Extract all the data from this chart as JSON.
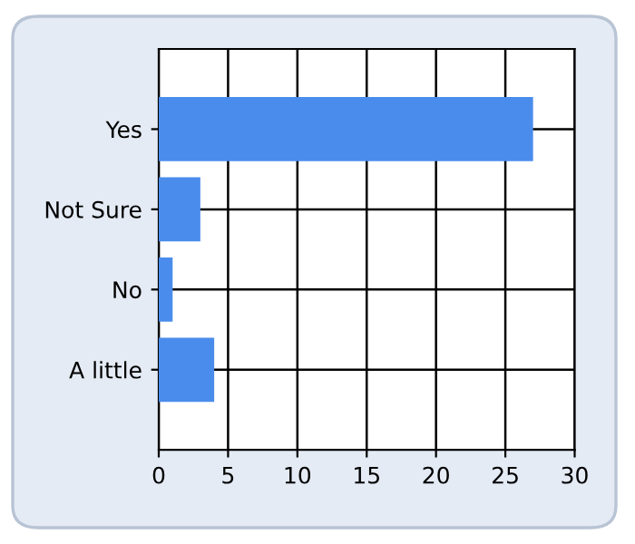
{
  "chart_data": {
    "type": "bar",
    "orientation": "horizontal",
    "categories": [
      "Yes",
      "Not Sure",
      "No",
      "A little"
    ],
    "values": [
      27,
      3,
      1,
      4
    ],
    "color": "#4a8cec",
    "xlim": [
      0,
      30
    ],
    "xticks": [
      0,
      5,
      10,
      15,
      20,
      25,
      30
    ],
    "grid": true
  }
}
